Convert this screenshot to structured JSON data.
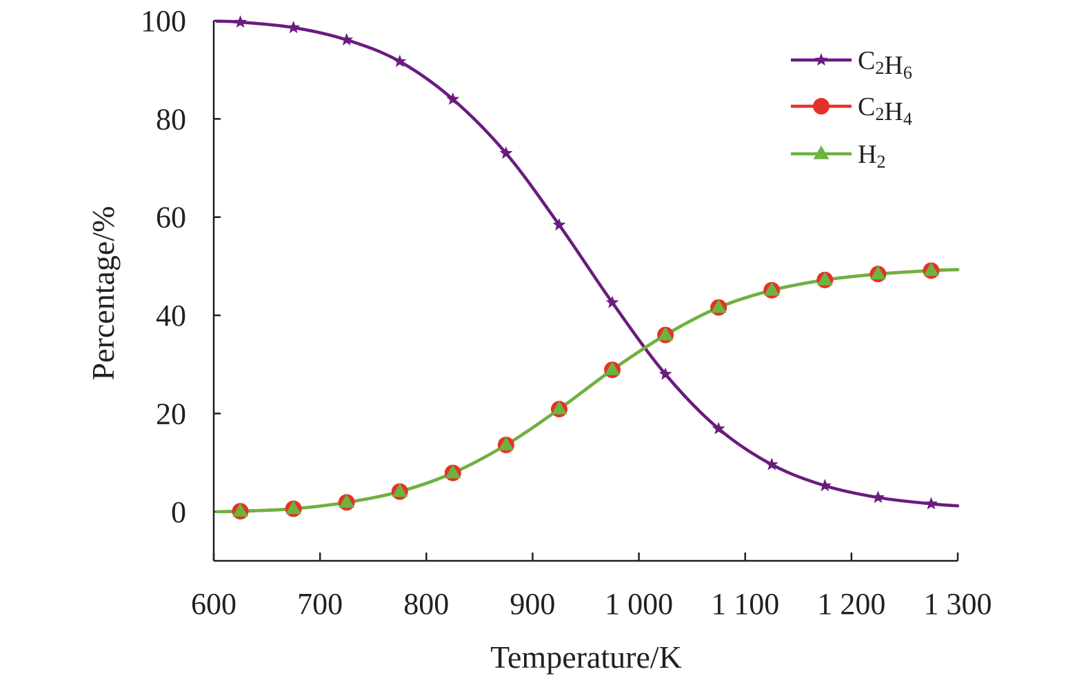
{
  "chart_data": {
    "type": "line",
    "title": "",
    "xlabel": "Temperature/K",
    "ylabel": "Percentage/%",
    "xlim": [
      600,
      1300
    ],
    "ylim": [
      -10,
      100
    ],
    "xticks": [
      600,
      700,
      800,
      900,
      1000,
      1100,
      1200,
      1300
    ],
    "xtick_labels": [
      "600",
      "700",
      "800",
      "900",
      "1 000",
      "1 100",
      "1 200",
      "1 300"
    ],
    "yticks": [
      0,
      20,
      40,
      60,
      80,
      100
    ],
    "ytick_labels": [
      "0",
      "20",
      "40",
      "60",
      "80",
      "100"
    ],
    "legend_position": "top-right",
    "series": [
      {
        "name": "C2H6",
        "label_parts": [
          [
            "C",
            ""
          ],
          [
            "2",
            "sub"
          ],
          [
            "H",
            ""
          ],
          [
            "6",
            "sub"
          ]
        ],
        "color": "#6a1b7e",
        "marker": "star",
        "x_line": [
          603,
          625,
          675,
          725,
          775,
          825,
          875,
          925,
          975,
          1025,
          1075,
          1125,
          1175,
          1225,
          1275,
          1300
        ],
        "y_line": [
          99.9,
          99.7,
          98.6,
          96.1,
          91.7,
          84.0,
          73.0,
          58.4,
          42.6,
          28.0,
          16.9,
          9.6,
          5.3,
          2.9,
          1.6,
          1.2
        ],
        "x_markers": [
          625,
          675,
          725,
          775,
          825,
          875,
          925,
          975,
          1025,
          1075,
          1125,
          1175,
          1225,
          1275
        ],
        "y_markers": [
          99.7,
          98.6,
          96.1,
          91.7,
          84.0,
          73.0,
          58.4,
          42.6,
          28.0,
          16.9,
          9.6,
          5.3,
          2.9,
          1.6
        ]
      },
      {
        "name": "C2H4",
        "label_parts": [
          [
            "C",
            ""
          ],
          [
            "2",
            "sub"
          ],
          [
            "H",
            ""
          ],
          [
            "4",
            "sub"
          ]
        ],
        "color": "#e53228",
        "marker": "circle",
        "x_line": [
          603,
          625,
          675,
          725,
          775,
          825,
          875,
          925,
          975,
          1025,
          1075,
          1125,
          1175,
          1225,
          1275,
          1300
        ],
        "y_line": [
          0.0,
          0.1,
          0.6,
          1.9,
          4.1,
          7.9,
          13.6,
          20.9,
          28.9,
          36.0,
          41.6,
          45.1,
          47.2,
          48.4,
          49.1,
          49.3
        ],
        "x_markers": [
          625,
          675,
          725,
          775,
          825,
          875,
          925,
          975,
          1025,
          1075,
          1125,
          1175,
          1225,
          1275
        ],
        "y_markers": [
          0.1,
          0.6,
          1.9,
          4.1,
          7.9,
          13.6,
          20.9,
          28.9,
          36.0,
          41.6,
          45.1,
          47.2,
          48.4,
          49.1
        ]
      },
      {
        "name": "H2",
        "label_parts": [
          [
            "H",
            ""
          ],
          [
            "2",
            "sub"
          ]
        ],
        "color": "#6cb33f",
        "marker": "triangle",
        "x_line": [
          603,
          625,
          675,
          725,
          775,
          825,
          875,
          925,
          975,
          1025,
          1075,
          1125,
          1175,
          1225,
          1275,
          1300
        ],
        "y_line": [
          0.0,
          0.1,
          0.6,
          1.9,
          4.1,
          7.9,
          13.6,
          20.9,
          28.9,
          36.0,
          41.6,
          45.1,
          47.2,
          48.4,
          49.1,
          49.3
        ],
        "x_markers": [
          625,
          675,
          725,
          775,
          825,
          875,
          925,
          975,
          1025,
          1075,
          1125,
          1175,
          1225,
          1275
        ],
        "y_markers": [
          0.1,
          0.6,
          1.9,
          4.1,
          7.9,
          13.6,
          20.9,
          28.9,
          36.0,
          41.6,
          45.1,
          47.2,
          48.4,
          49.1
        ]
      }
    ],
    "legend": [
      {
        "series": "C2H6"
      },
      {
        "series": "C2H4"
      },
      {
        "series": "H2"
      }
    ]
  }
}
